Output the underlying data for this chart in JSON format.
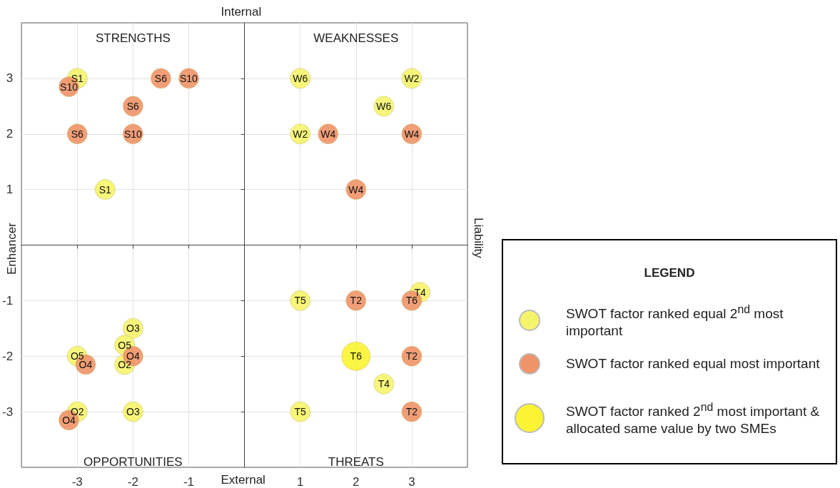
{
  "chart_data": {
    "type": "scatter",
    "xlabel": "External",
    "x2label": "Internal",
    "ylabel": "Enhancer",
    "y2label": "Liability",
    "xlim": [
      -4,
      4
    ],
    "ylim": [
      -4,
      4
    ],
    "xticks": [
      -3,
      -2,
      -1,
      1,
      2,
      3
    ],
    "yticks": [
      -3,
      -2,
      -1,
      1,
      2,
      3
    ],
    "grid": true,
    "marker": "circle",
    "legend": "right",
    "legend_title": "LEGEND",
    "series": [
      {
        "name": "SWOT factor ranked equal 2$^{nd}$ most important",
        "color": "#f6f46c",
        "x": [
          -3,
          -2.5,
          1,
          3,
          2.5,
          1,
          -2,
          -2.15,
          -3,
          -2.15,
          -3,
          -2,
          1,
          3.15,
          2.5,
          1
        ],
        "values": [
          3,
          1,
          3,
          3,
          2.5,
          2,
          -1.5,
          -1.8,
          -2,
          -2.15,
          -3,
          -3,
          -1,
          -0.85,
          -2.5,
          -3
        ]
      },
      {
        "name": "SWOT factor ranked equal most important",
        "color": "#ef9468",
        "x": [
          -3.15,
          -1.5,
          -1,
          -2,
          -3,
          -2,
          1.5,
          3,
          2,
          -2,
          -2.85,
          -3.15,
          2,
          3,
          3,
          3
        ],
        "values": [
          2.85,
          3,
          3,
          2.5,
          2,
          2,
          2,
          2,
          1,
          -2,
          -2.15,
          -3.15,
          -1,
          -1,
          -2,
          -3
        ]
      },
      {
        "name": "SWOT factor ranked 2$^{nd}$ most important & allocated same value by two SMEs",
        "color": "#fbf432",
        "x": [
          2
        ],
        "values": [
          -2
        ]
      }
    ],
    "annotations": [
      "STRENGTHS",
      "WEAKNESSES",
      "OPPORTUNITIES",
      "THREATS",
      {
        "text": "S1",
        "x": -3,
        "y": 3
      },
      {
        "text": "S1",
        "x": -2.5,
        "y": 1
      },
      {
        "text": "W6",
        "x": 1,
        "y": 3
      },
      {
        "text": "W2",
        "x": 3,
        "y": 3
      },
      {
        "text": "W6",
        "x": 2.5,
        "y": 2.5
      },
      {
        "text": "W2",
        "x": 1,
        "y": 2
      },
      {
        "text": "O3",
        "x": -2,
        "y": -1.5
      },
      {
        "text": "O5",
        "x": -2.15,
        "y": -1.8
      },
      {
        "text": "O5",
        "x": -3,
        "y": -2
      },
      {
        "text": "O2",
        "x": -2.15,
        "y": -2.15
      },
      {
        "text": "O2",
        "x": -3,
        "y": -3
      },
      {
        "text": "O3",
        "x": -2,
        "y": -3
      },
      {
        "text": "T5",
        "x": 1,
        "y": -1
      },
      {
        "text": "T4",
        "x": 3.15,
        "y": -0.85
      },
      {
        "text": "T4",
        "x": 2.5,
        "y": -2.5
      },
      {
        "text": "T5",
        "x": 1,
        "y": -3
      },
      {
        "text": "S10",
        "x": -3.15,
        "y": 2.85
      },
      {
        "text": "S6",
        "x": -1.5,
        "y": 3
      },
      {
        "text": "S10",
        "x": -1,
        "y": 3
      },
      {
        "text": "S6",
        "x": -2,
        "y": 2.5
      },
      {
        "text": "S6",
        "x": -3,
        "y": 2
      },
      {
        "text": "S10",
        "x": -2,
        "y": 2
      },
      {
        "text": "W4",
        "x": 1.5,
        "y": 2
      },
      {
        "text": "W4",
        "x": 3,
        "y": 2
      },
      {
        "text": "W4",
        "x": 2,
        "y": 1
      },
      {
        "text": "O4",
        "x": -2,
        "y": -2
      },
      {
        "text": "O4",
        "x": -2.85,
        "y": -2.15
      },
      {
        "text": "O4",
        "x": -3.15,
        "y": -3.15
      },
      {
        "text": "T2",
        "x": 2,
        "y": -1
      },
      {
        "text": "T6",
        "x": 3,
        "y": -1
      },
      {
        "text": "T2",
        "x": 3,
        "y": -2
      },
      {
        "text": "T2",
        "x": 3,
        "y": -3
      },
      {
        "text": "T6",
        "x": 2,
        "y": -2
      }
    ]
  }
}
